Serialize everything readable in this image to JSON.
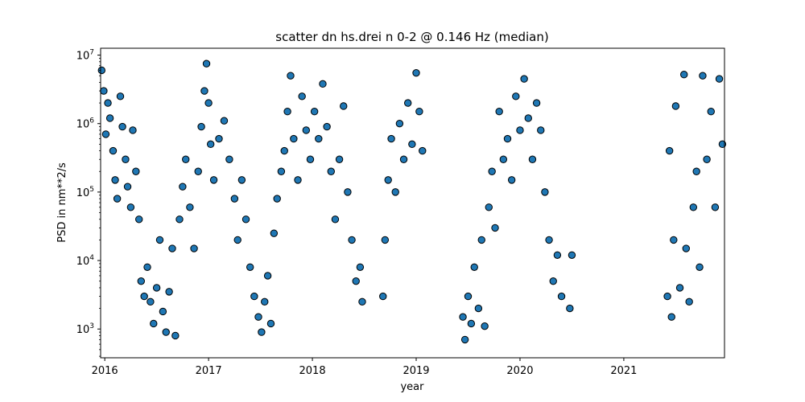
{
  "chart_data": {
    "type": "scatter",
    "title": "scatter dn hs.drei n 0-2 @ 0.146 Hz (median)",
    "xlabel": "year",
    "ylabel": "PSD in nm**2/s",
    "xlim": [
      2015.96,
      2021.97
    ],
    "ylim": [
      380,
      12600000
    ],
    "yscale": "log",
    "grid": false,
    "marker_color": "#1f77b4",
    "marker_edge_color": "#000000",
    "x_ticks": [
      {
        "value": 2016,
        "label": "2016"
      },
      {
        "value": 2017,
        "label": "2017"
      },
      {
        "value": 2018,
        "label": "2018"
      },
      {
        "value": 2019,
        "label": "2019"
      },
      {
        "value": 2020,
        "label": "2020"
      },
      {
        "value": 2021,
        "label": "2021"
      }
    ],
    "y_ticks": [
      {
        "value": 1000,
        "mantissa": "10",
        "exp": "3"
      },
      {
        "value": 10000,
        "mantissa": "10",
        "exp": "4"
      },
      {
        "value": 100000,
        "mantissa": "10",
        "exp": "5"
      },
      {
        "value": 1000000,
        "mantissa": "10",
        "exp": "6"
      },
      {
        "value": 10000000,
        "mantissa": "10",
        "exp": "7"
      }
    ],
    "series": [
      {
        "points": [
          [
            2015.97,
            6000000
          ],
          [
            2015.99,
            3000000
          ],
          [
            2016.01,
            700000
          ],
          [
            2016.03,
            2000000
          ],
          [
            2016.05,
            1200000
          ],
          [
            2016.08,
            400000
          ],
          [
            2016.1,
            150000
          ],
          [
            2016.12,
            80000
          ],
          [
            2016.15,
            2500000
          ],
          [
            2016.17,
            900000
          ],
          [
            2016.2,
            300000
          ],
          [
            2016.22,
            120000
          ],
          [
            2016.25,
            60000
          ],
          [
            2016.27,
            800000
          ],
          [
            2016.3,
            200000
          ],
          [
            2016.33,
            40000
          ],
          [
            2016.35,
            5000
          ],
          [
            2016.38,
            3000
          ],
          [
            2016.41,
            8000
          ],
          [
            2016.44,
            2500
          ],
          [
            2016.47,
            1200
          ],
          [
            2016.5,
            4000
          ],
          [
            2016.53,
            20000
          ],
          [
            2016.56,
            1800
          ],
          [
            2016.59,
            900
          ],
          [
            2016.62,
            3500
          ],
          [
            2016.65,
            15000
          ],
          [
            2016.68,
            800
          ],
          [
            2016.72,
            40000
          ],
          [
            2016.75,
            120000
          ],
          [
            2016.78,
            300000
          ],
          [
            2016.82,
            60000
          ],
          [
            2016.86,
            15000
          ],
          [
            2016.9,
            200000
          ],
          [
            2016.93,
            900000
          ],
          [
            2016.96,
            3000000
          ],
          [
            2016.98,
            7500000
          ],
          [
            2017.0,
            2000000
          ],
          [
            2017.02,
            500000
          ],
          [
            2017.05,
            150000
          ],
          [
            2017.1,
            600000
          ],
          [
            2017.15,
            1100000
          ],
          [
            2017.2,
            300000
          ],
          [
            2017.25,
            80000
          ],
          [
            2017.28,
            20000
          ],
          [
            2017.32,
            150000
          ],
          [
            2017.36,
            40000
          ],
          [
            2017.4,
            8000
          ],
          [
            2017.44,
            3000
          ],
          [
            2017.48,
            1500
          ],
          [
            2017.51,
            900
          ],
          [
            2017.54,
            2500
          ],
          [
            2017.57,
            6000
          ],
          [
            2017.6,
            1200
          ],
          [
            2017.63,
            25000
          ],
          [
            2017.66,
            80000
          ],
          [
            2017.7,
            200000
          ],
          [
            2017.73,
            400000
          ],
          [
            2017.76,
            1500000
          ],
          [
            2017.79,
            5000000
          ],
          [
            2017.82,
            600000
          ],
          [
            2017.86,
            150000
          ],
          [
            2017.9,
            2500000
          ],
          [
            2017.94,
            800000
          ],
          [
            2017.98,
            300000
          ],
          [
            2018.02,
            1500000
          ],
          [
            2018.06,
            600000
          ],
          [
            2018.1,
            3800000
          ],
          [
            2018.14,
            900000
          ],
          [
            2018.18,
            200000
          ],
          [
            2018.22,
            40000
          ],
          [
            2018.26,
            300000
          ],
          [
            2018.3,
            1800000
          ],
          [
            2018.34,
            100000
          ],
          [
            2018.38,
            20000
          ],
          [
            2018.42,
            5000
          ],
          [
            2018.46,
            8000
          ],
          [
            2018.48,
            2500
          ],
          [
            2018.68,
            3000
          ],
          [
            2018.7,
            20000
          ],
          [
            2018.73,
            150000
          ],
          [
            2018.76,
            600000
          ],
          [
            2018.8,
            100000
          ],
          [
            2018.84,
            1000000
          ],
          [
            2018.88,
            300000
          ],
          [
            2018.92,
            2000000
          ],
          [
            2018.96,
            500000
          ],
          [
            2019.0,
            5500000
          ],
          [
            2019.03,
            1500000
          ],
          [
            2019.06,
            400000
          ],
          [
            2019.45,
            1500
          ],
          [
            2019.47,
            700
          ],
          [
            2019.5,
            3000
          ],
          [
            2019.53,
            1200
          ],
          [
            2019.56,
            8000
          ],
          [
            2019.6,
            2000
          ],
          [
            2019.63,
            20000
          ],
          [
            2019.66,
            1100
          ],
          [
            2019.7,
            60000
          ],
          [
            2019.73,
            200000
          ],
          [
            2019.76,
            30000
          ],
          [
            2019.8,
            1500000
          ],
          [
            2019.84,
            300000
          ],
          [
            2019.88,
            600000
          ],
          [
            2019.92,
            150000
          ],
          [
            2019.96,
            2500000
          ],
          [
            2020.0,
            800000
          ],
          [
            2020.04,
            4500000
          ],
          [
            2020.08,
            1200000
          ],
          [
            2020.12,
            300000
          ],
          [
            2020.16,
            2000000
          ],
          [
            2020.2,
            800000
          ],
          [
            2020.24,
            100000
          ],
          [
            2020.28,
            20000
          ],
          [
            2020.32,
            5000
          ],
          [
            2020.36,
            12000
          ],
          [
            2020.4,
            3000
          ],
          [
            2020.48,
            2000
          ],
          [
            2020.5,
            12000
          ],
          [
            2021.42,
            3000
          ],
          [
            2021.44,
            400000
          ],
          [
            2021.46,
            1500
          ],
          [
            2021.48,
            20000
          ],
          [
            2021.5,
            1800000
          ],
          [
            2021.54,
            4000
          ],
          [
            2021.58,
            5200000
          ],
          [
            2021.6,
            15000
          ],
          [
            2021.63,
            2500
          ],
          [
            2021.67,
            60000
          ],
          [
            2021.7,
            200000
          ],
          [
            2021.73,
            8000
          ],
          [
            2021.76,
            5000000
          ],
          [
            2021.8,
            300000
          ],
          [
            2021.84,
            1500000
          ],
          [
            2021.88,
            60000
          ],
          [
            2021.92,
            4500000
          ],
          [
            2021.95,
            500000
          ]
        ]
      }
    ]
  }
}
